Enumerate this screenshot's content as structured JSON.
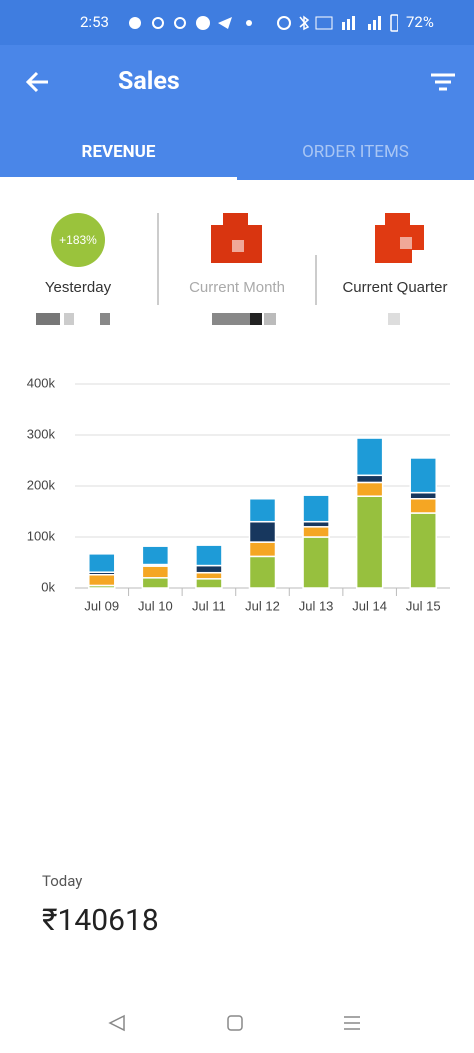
{
  "status_bar": {
    "time": "2:53",
    "battery": "72%"
  },
  "app_bar": {
    "title": "Sales"
  },
  "tabs": [
    "REVENUE",
    "ORDER ITEMS"
  ],
  "kpis": [
    {
      "badge": "+183%",
      "label": "Yesterday"
    },
    {
      "label": "Current Month"
    },
    {
      "label": "Current Quarter"
    }
  ],
  "chart_data": {
    "type": "stacked-bar",
    "categories": [
      "Jul 09",
      "Jul 10",
      "Jul 11",
      "Jul 12",
      "Jul 13",
      "Jul 14",
      "Jul 15"
    ],
    "series": [
      {
        "color": "#97c03e",
        "values": [
          5,
          20,
          18,
          62,
          100,
          180,
          147
        ]
      },
      {
        "color": "#f5a623",
        "values": [
          21,
          23,
          12,
          28,
          20,
          27,
          28
        ]
      },
      {
        "color": "#17375e",
        "values": [
          5,
          3,
          14,
          40,
          10,
          14,
          12
        ]
      },
      {
        "color": "#1e9bd7",
        "values": [
          36,
          36,
          40,
          45,
          52,
          73,
          68
        ]
      }
    ],
    "ylim": [
      0,
      400
    ],
    "yticks": [
      {
        "value": 0,
        "label": "0k"
      },
      {
        "value": 100,
        "label": "100k"
      },
      {
        "value": 200,
        "label": "200k"
      },
      {
        "value": 300,
        "label": "300k"
      },
      {
        "value": 400,
        "label": "400k"
      }
    ],
    "grid": true
  },
  "today": {
    "label": "Today",
    "value": "₹140618"
  }
}
